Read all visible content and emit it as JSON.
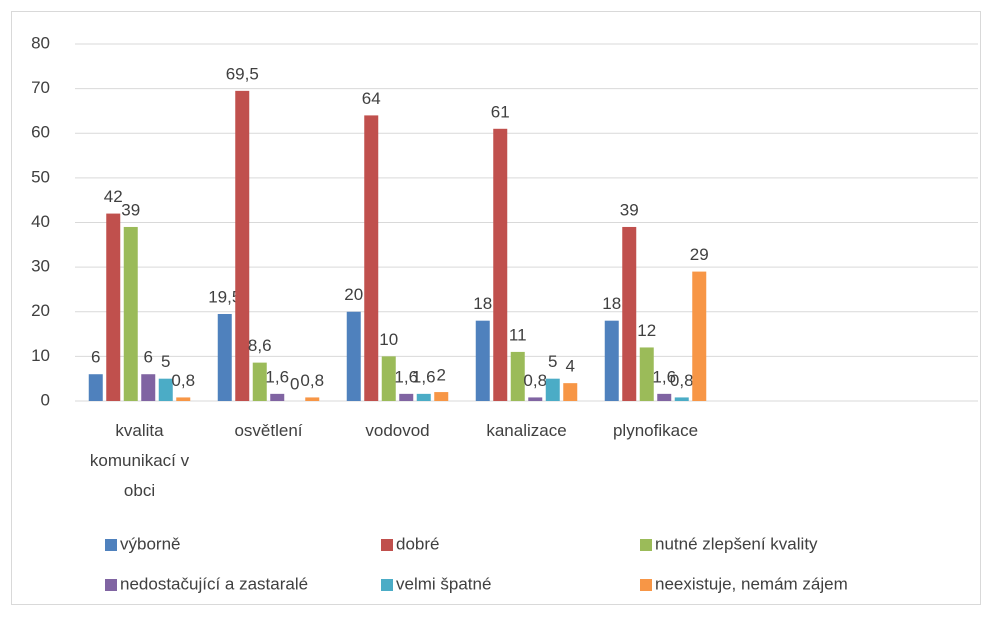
{
  "chart_data": {
    "type": "bar",
    "categories": [
      "kvalita komunikací v obci",
      "osvětlení",
      "vodovod",
      "kanalizace",
      "plynofikace",
      null,
      null
    ],
    "series": [
      {
        "name": "výborně",
        "color": "#4f81bd",
        "values": [
          6,
          19.5,
          20,
          18,
          18,
          null,
          null
        ],
        "value_labels": [
          "6",
          "19,5",
          "20",
          "18",
          "18",
          null,
          null
        ]
      },
      {
        "name": "dobré",
        "color": "#c0504d",
        "values": [
          42,
          69.5,
          64,
          61,
          39,
          null,
          null
        ],
        "value_labels": [
          "42",
          "69,5",
          "64",
          "61",
          "39",
          null,
          null
        ]
      },
      {
        "name": "nutné zlepšení kvality",
        "color": "#9bbb59",
        "values": [
          39,
          8.6,
          10,
          11,
          12,
          null,
          null
        ],
        "value_labels": [
          "39",
          "8,6",
          "10",
          "11",
          "12",
          null,
          null
        ]
      },
      {
        "name": "nedostačující a zastaralé",
        "color": "#8064a2",
        "values": [
          6,
          1.6,
          1.6,
          0.8,
          1.6,
          null,
          null
        ],
        "value_labels": [
          "6",
          "1,6",
          "1,6",
          "0,8",
          "1,6",
          null,
          null
        ]
      },
      {
        "name": "velmi špatné",
        "color": "#4bacc6",
        "values": [
          5,
          0,
          1.6,
          5,
          0.8,
          null,
          null
        ],
        "value_labels": [
          "5",
          "0",
          "1,6",
          "5",
          "0,8",
          null,
          null
        ]
      },
      {
        "name": "neexistuje, nemám zájem",
        "color": "#f79646",
        "values": [
          0.8,
          0.8,
          2,
          4,
          29,
          null,
          null
        ],
        "value_labels": [
          "0,8",
          "0,8",
          "2",
          "4",
          "29",
          null,
          null
        ]
      }
    ],
    "ylim": [
      0,
      80
    ],
    "yticks": [
      0,
      10,
      20,
      30,
      40,
      50,
      60,
      70,
      80
    ],
    "grid": true,
    "legend": "bottom"
  }
}
